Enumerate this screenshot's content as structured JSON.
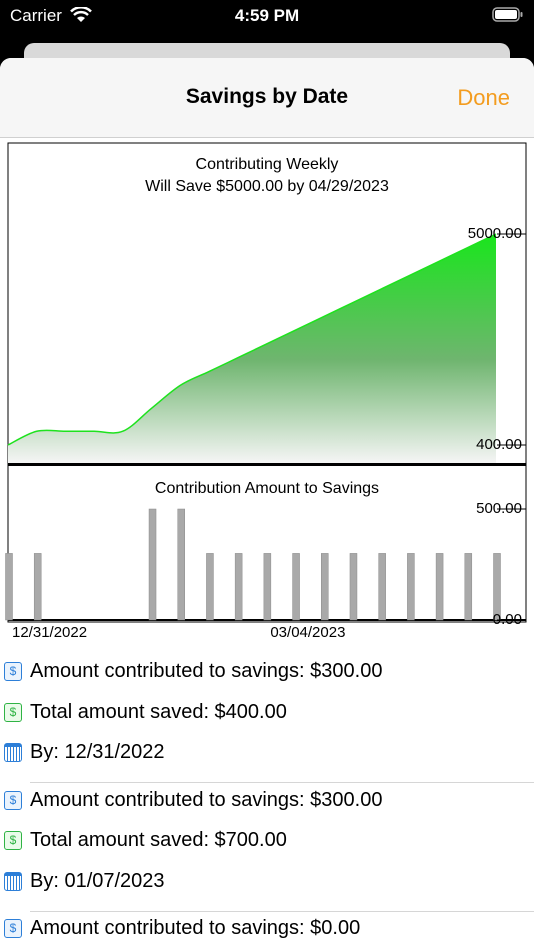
{
  "status_bar": {
    "carrier": "Carrier",
    "time": "4:59 PM"
  },
  "nav": {
    "title": "Savings by Date",
    "done": "Done"
  },
  "chart_data": [
    {
      "type": "area",
      "title": "Contributing Weekly",
      "subtitle": "Will Save $5000.00 by 04/29/2023",
      "values": [
        400,
        700,
        700,
        700,
        700,
        1200,
        1700,
        2000,
        2300,
        2600,
        2900,
        3200,
        3500,
        3800,
        4100,
        4400,
        4700,
        5000
      ],
      "color": "#1ee21e",
      "ylim": [
        400,
        5000
      ],
      "yticks": [
        {
          "value": 400,
          "label": "400.00"
        },
        {
          "value": 5000,
          "label": "5000.00"
        }
      ]
    },
    {
      "type": "bar",
      "title": "Contribution Amount to Savings",
      "categories": [
        "12/31/2022",
        null,
        null,
        null,
        null,
        null,
        null,
        null,
        null,
        "03/04/2023",
        null,
        null,
        null,
        null,
        null,
        null,
        null,
        null
      ],
      "values": [
        300,
        300,
        0,
        0,
        0,
        500,
        500,
        300,
        300,
        300,
        300,
        300,
        300,
        300,
        300,
        300,
        300,
        300
      ],
      "color": "#a9a9a9",
      "ylim": [
        0,
        500
      ],
      "yticks": [
        {
          "value": 0,
          "label": "0.00"
        },
        {
          "value": 500,
          "label": "500.00"
        }
      ]
    }
  ],
  "entries": [
    {
      "amount": "Amount contributed to savings: $300.00",
      "total": "Total amount saved: $400.00",
      "by": "By: 12/31/2022"
    },
    {
      "amount": "Amount contributed to savings: $300.00",
      "total": "Total amount saved: $700.00",
      "by": "By: 01/07/2023"
    },
    {
      "amount": "Amount contributed to savings: $0.00"
    }
  ]
}
